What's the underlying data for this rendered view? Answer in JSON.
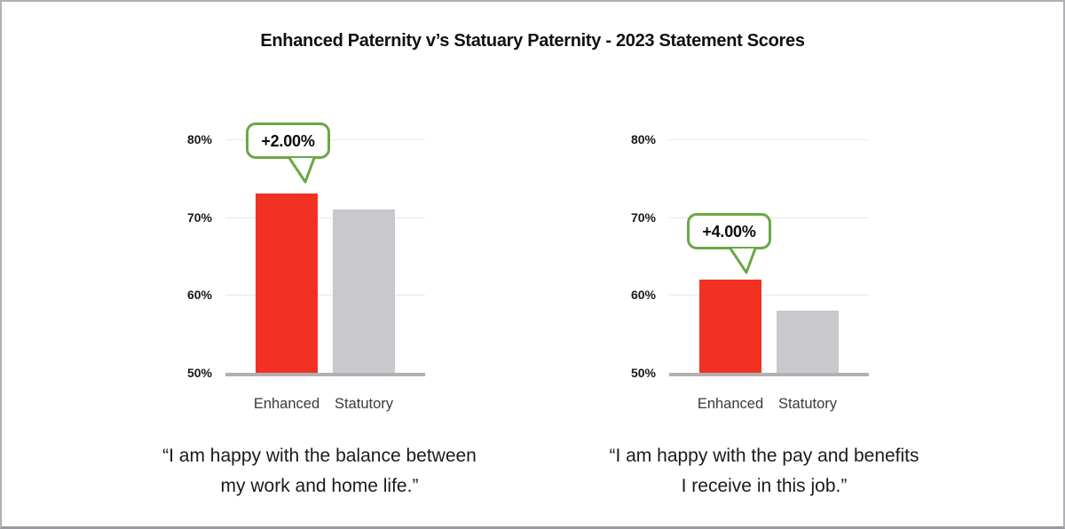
{
  "title": "Enhanced Paternity v’s Statuary Paternity - 2023 Statement Scores",
  "colors": {
    "enhanced_bar": "#f13122",
    "statutory_bar": "#c9c8cd",
    "callout_border": "#6aa844",
    "gridline": "#e7e7e9",
    "baseline": "#b1b1b5"
  },
  "chart_data": [
    {
      "type": "bar",
      "categories": [
        "Enhanced",
        "Statutory"
      ],
      "values": [
        73,
        71
      ],
      "annotation": "+2.00%",
      "y_ticks": [
        "80%",
        "70%",
        "60%",
        "50%"
      ],
      "ylim": [
        50,
        80
      ],
      "grid": true,
      "legend": false,
      "bar_colors": [
        "#f13122",
        "#c9c8cd"
      ],
      "caption": [
        "“I am happy with the balance between",
        "my work and home life.”"
      ]
    },
    {
      "type": "bar",
      "categories": [
        "Enhanced",
        "Statutory"
      ],
      "values": [
        62,
        58
      ],
      "annotation": "+4.00%",
      "y_ticks": [
        "80%",
        "70%",
        "60%",
        "50%"
      ],
      "ylim": [
        50,
        80
      ],
      "grid": true,
      "legend": false,
      "bar_colors": [
        "#f13122",
        "#c9c8cd"
      ],
      "caption": [
        "“I am happy with the pay and benefits",
        "I receive in this job.”"
      ]
    }
  ]
}
